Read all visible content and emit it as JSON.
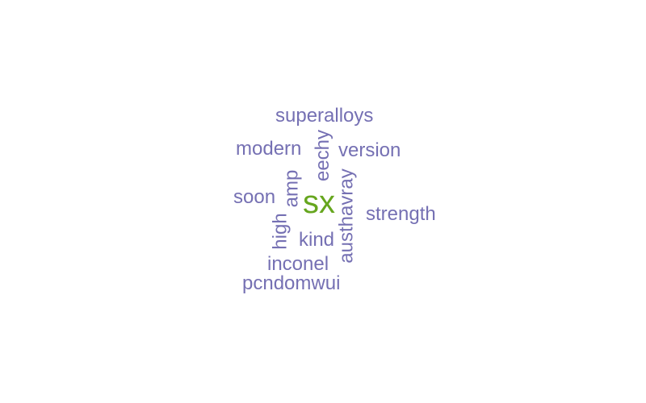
{
  "word_cloud": {
    "highlight_color": "#66a61e",
    "word_color": "#7570b3",
    "words": {
      "superalloys": "superalloys",
      "modern": "modern",
      "version": "version",
      "eechy": "eechy",
      "soon": "soon",
      "amp": "amp",
      "sx": "sx",
      "austhavray": "austhavray",
      "strength": "strength",
      "high": "high",
      "kind": "kind",
      "inconel": "inconel",
      "pcndomwui": "pcndomwui"
    }
  }
}
